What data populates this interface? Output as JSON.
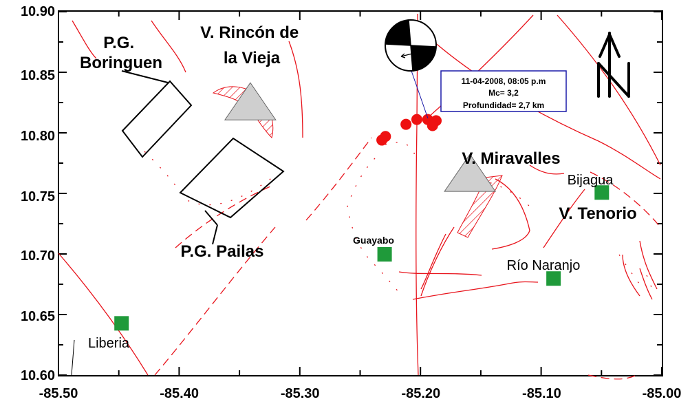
{
  "axes": {
    "x_ticks": [
      "-85.50",
      "-85.40",
      "-85.30",
      "-85.20",
      "-85.10",
      "-85.00"
    ],
    "y_ticks": [
      "10.90",
      "10.85",
      "10.80",
      "10.75",
      "10.70",
      "10.65",
      "10.60"
    ]
  },
  "labels": {
    "pg_boringuen": [
      "P.G.",
      "Boringuen"
    ],
    "v_rincon": [
      "V. Rincón de",
      "la Vieja"
    ],
    "pg_pailas": "P.G. Pailas",
    "v_miravalles": "V. Miravalles",
    "v_tenorio": "V. Tenorio",
    "guayabo": "Guayabo",
    "bijagua": "Bijagua",
    "rio_naranjo": "Río Naranjo",
    "liberia": "Liberia"
  },
  "event_info": {
    "datetime": "11-04-2008, 08:05 p.m",
    "magnitude": "Mc= 3,2",
    "depth": "Profundidad= 2,7 km"
  },
  "colors": {
    "fault": "#e8141c",
    "epicenter": "#ee1111",
    "volcano": "#cfcfcf",
    "town": "#1f9a3a",
    "info_box_border": "#1a1aa8"
  },
  "epicenters": [
    {
      "lon": -85.232,
      "lat": 10.794
    },
    {
      "lon": -85.229,
      "lat": 10.797
    },
    {
      "lon": -85.212,
      "lat": 10.807
    },
    {
      "lon": -85.203,
      "lat": 10.811
    },
    {
      "lon": -85.194,
      "lat": 10.811
    },
    {
      "lon": -85.187,
      "lat": 10.81
    },
    {
      "lon": -85.19,
      "lat": 10.806
    }
  ],
  "volcanoes": [
    {
      "name": "Rincón de la Vieja",
      "lon": -85.341,
      "lat": 10.826
    },
    {
      "name": "Miravalles",
      "lon": -85.159,
      "lat": 10.767
    }
  ],
  "towns": [
    {
      "name": "Guayabo",
      "lon": -85.23,
      "lat": 10.7
    },
    {
      "name": "Bijagua",
      "lon": -85.05,
      "lat": 10.751
    },
    {
      "name": "Río Naranjo",
      "lon": -85.09,
      "lat": 10.68
    },
    {
      "name": "Liberia",
      "lon": -85.448,
      "lat": 10.643
    }
  ],
  "icons": [
    "north-arrow-icon",
    "focal-mechanism-icon"
  ]
}
